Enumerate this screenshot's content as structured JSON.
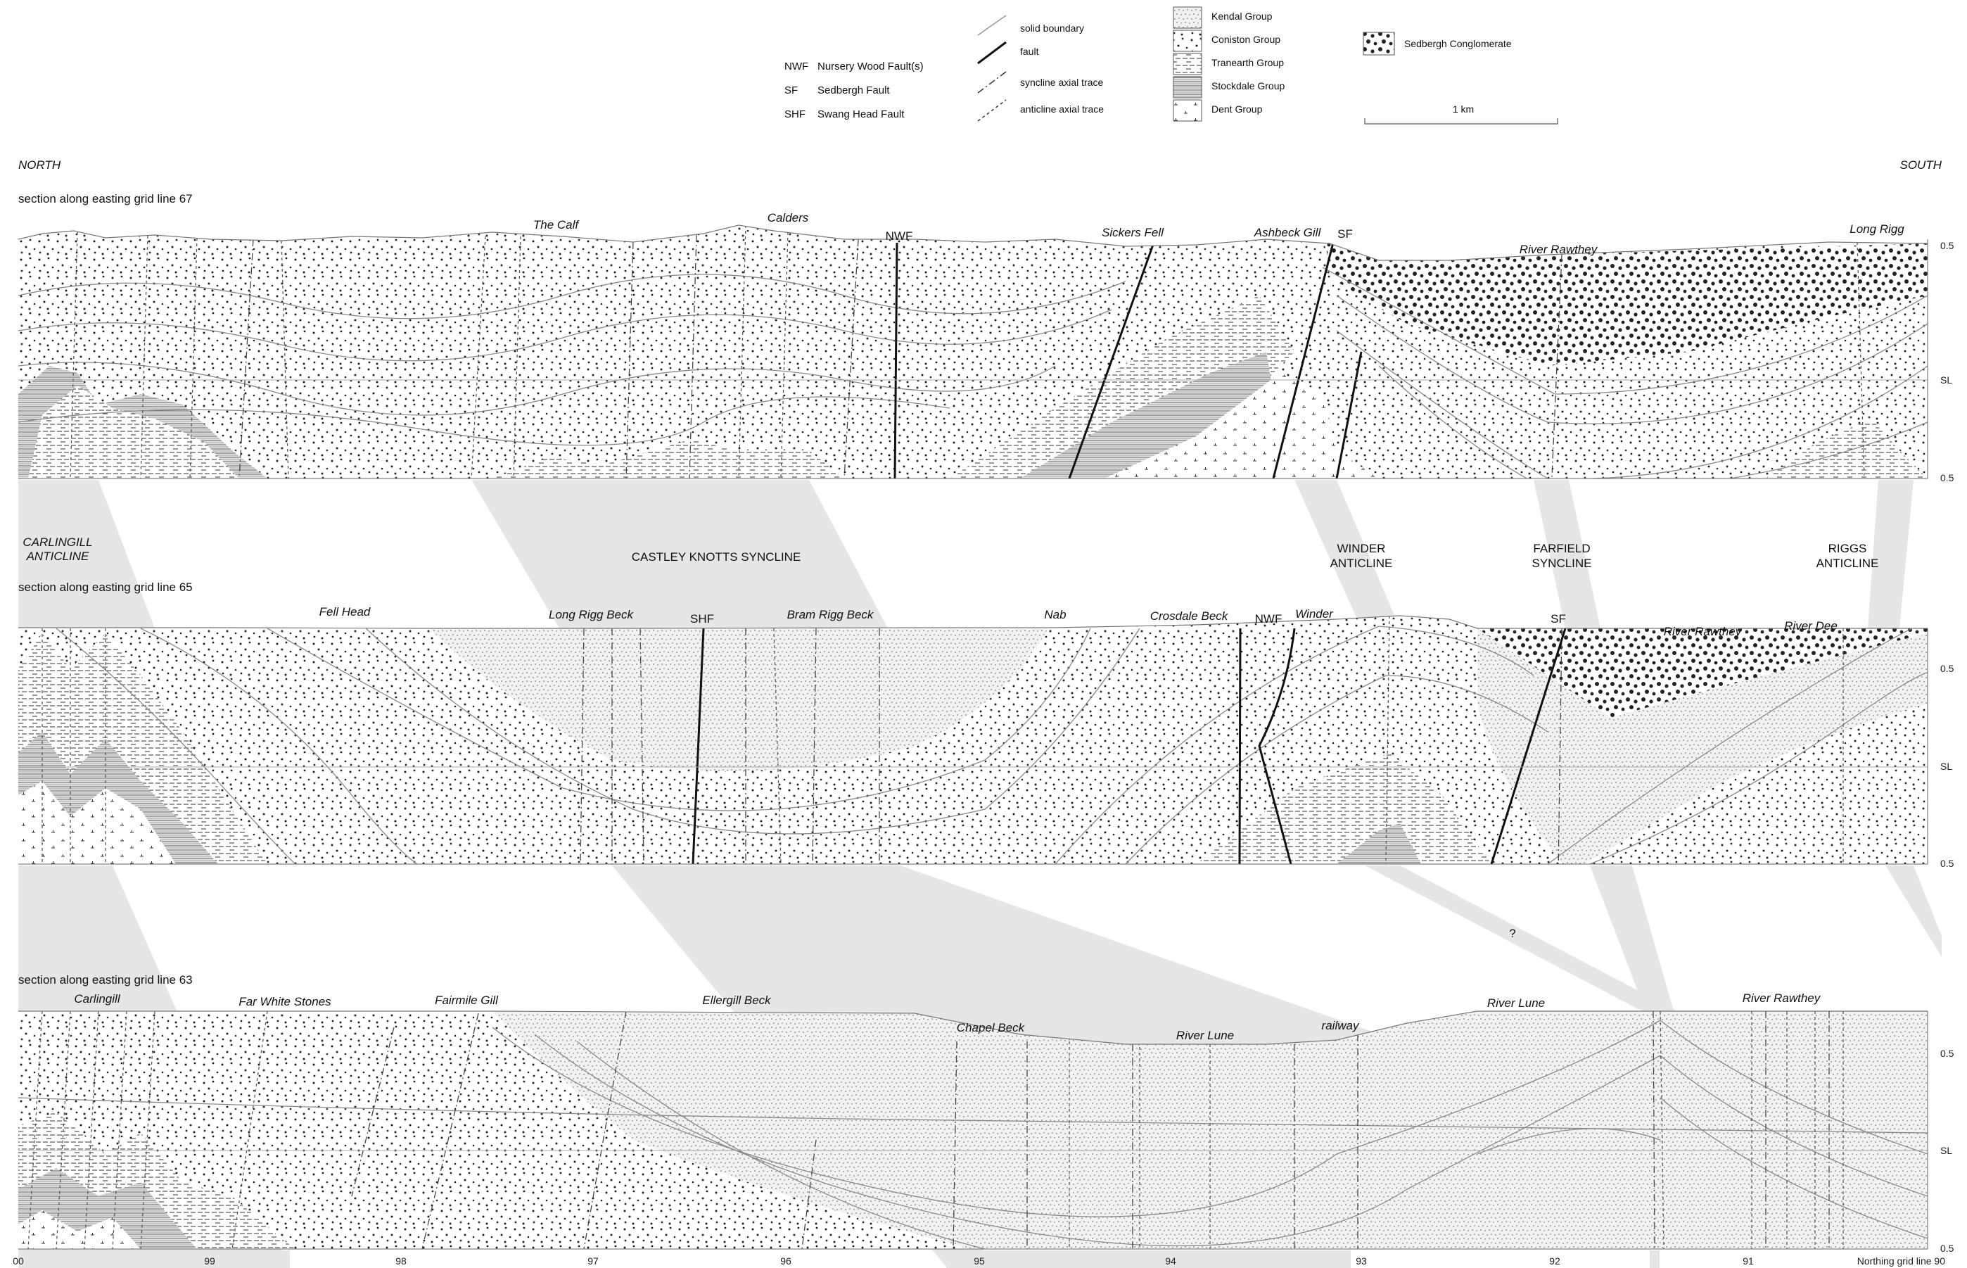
{
  "fault_abbreviations": [
    {
      "code": "NWF",
      "name": "Nursery Wood Fault(s)"
    },
    {
      "code": "SF",
      "name": "Sedbergh Fault"
    },
    {
      "code": "SHF",
      "name": "Swang Head Fault"
    }
  ],
  "line_key": [
    "solid boundary",
    "fault",
    "syncline axial trace",
    "anticline axial trace"
  ],
  "unit_key": [
    "Kendal Group",
    "Coniston Group",
    "Tranearth Group",
    "Stockdale Group",
    "Dent Group"
  ],
  "conglomerate_key": "Sedbergh Conglomerate",
  "scale_label": "1 km",
  "north_label": "NORTH",
  "south_label": "SOUTH",
  "sections": [
    {
      "title": "section along easting grid line 67",
      "places": [
        "The Calf",
        "Calders",
        "NWF",
        "Sickers Fell",
        "Ashbeck Gill",
        "SF",
        "River Rawthey",
        "Long Rigg"
      ],
      "axis_labels": [
        "0.5",
        "SL",
        "0.5"
      ]
    },
    {
      "title": "section along easting grid line 65",
      "places": [
        "Fell Head",
        "Long Rigg Beck",
        "SHF",
        "Bram Rigg Beck",
        "Nab",
        "Crosdale Beck",
        "NWF",
        "Winder",
        "SF",
        "River Rawthey",
        "River Dee"
      ],
      "axis_labels": [
        "0.5",
        "SL",
        "0.5"
      ]
    },
    {
      "title": "section along easting grid line 63",
      "places": [
        "Carlingill",
        "Far White Stones",
        "Fairmile Gill",
        "Ellergill Beck",
        "Chapel Beck",
        "River Lune",
        "railway",
        "River Lune",
        "River Rawthey"
      ],
      "axis_labels": [
        "0.5",
        "SL",
        "0.5"
      ]
    }
  ],
  "structures": [
    "CARLINGILL ANTICLINE",
    "CASTLEY KNOTTS SYNCLINE",
    "WINDER ANTICLINE",
    "FARFIELD SYNCLINE",
    "RIGGS ANTICLINE"
  ],
  "question_mark": "?",
  "northing_ticks": [
    "00",
    "99",
    "98",
    "97",
    "96",
    "95",
    "94",
    "93",
    "92",
    "91"
  ],
  "northing_end_label": "Northing grid line 90"
}
